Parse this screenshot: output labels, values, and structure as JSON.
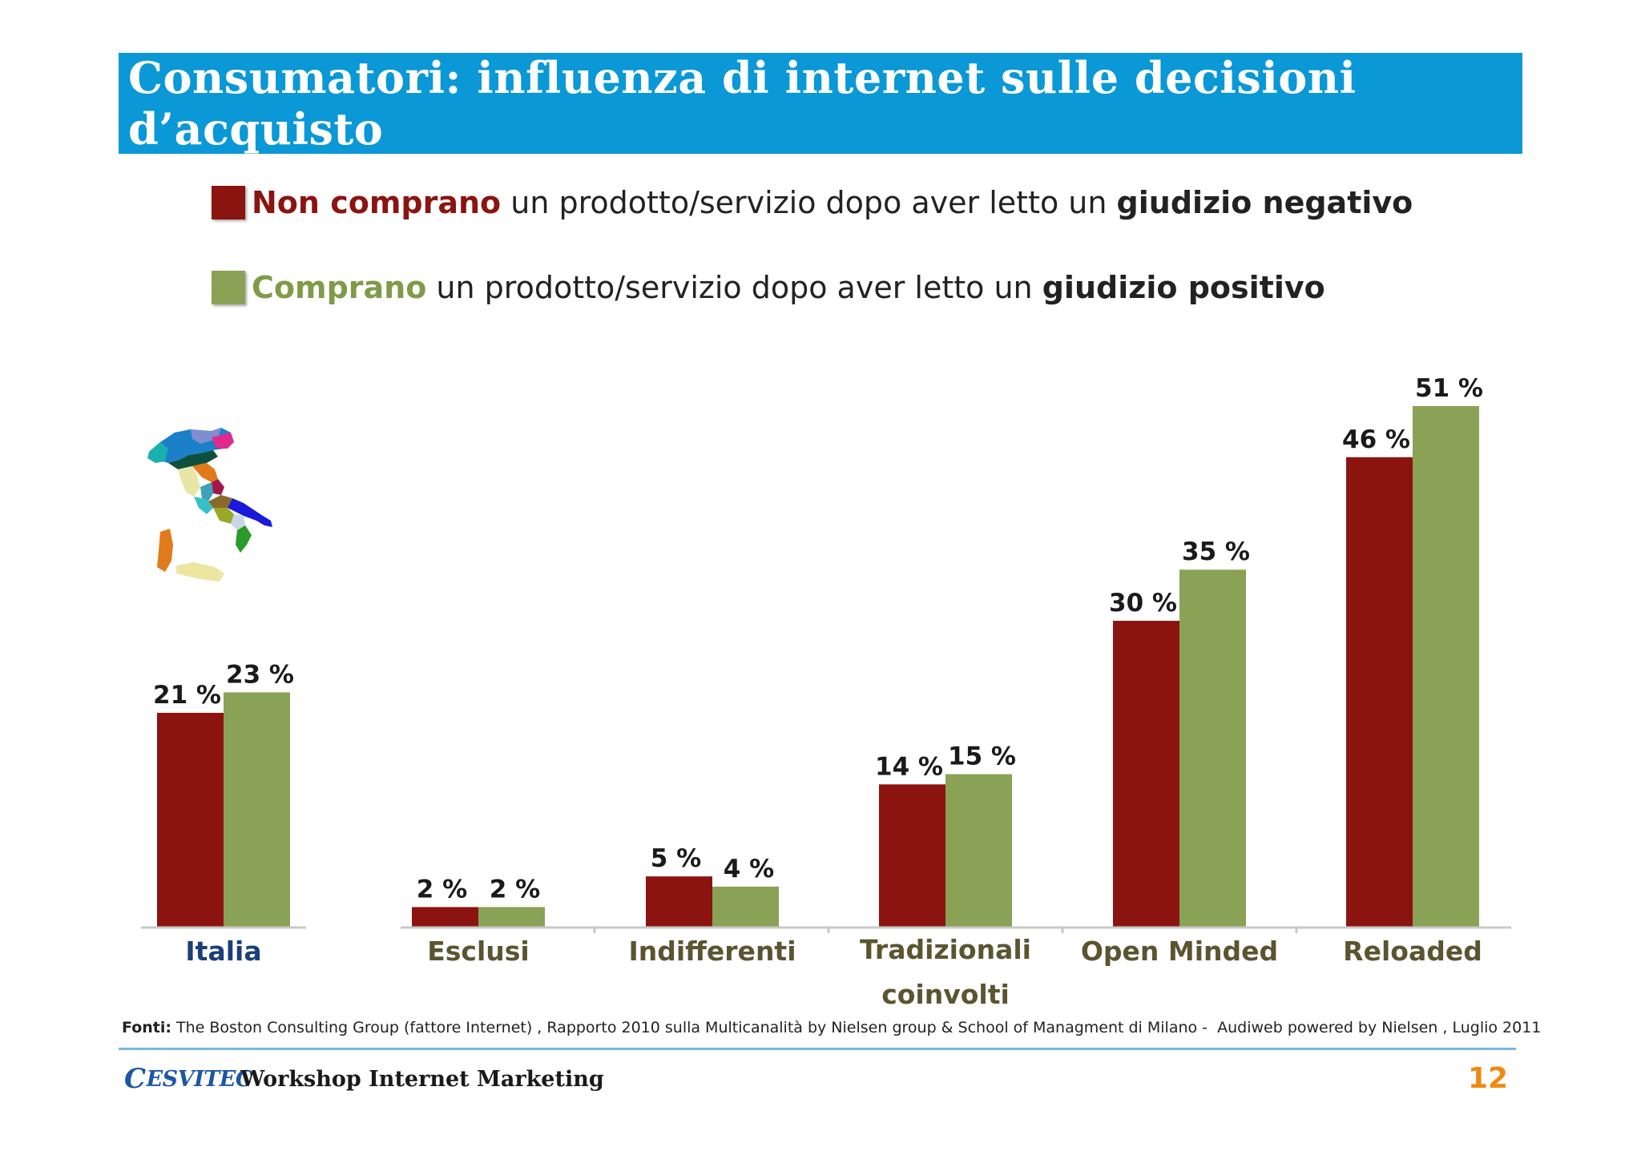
{
  "header": {
    "title": "Consumatori: influenza di internet sulle decisioni d’acquisto"
  },
  "legend": [
    {
      "strong": "Non comprano",
      "middle": " un prodotto/servizio dopo aver letto un ",
      "tail": "giudizio negativo",
      "color": "#8b1410"
    },
    {
      "strong": "Comprano",
      "middle": " un prodotto/servizio dopo aver letto un ",
      "tail": "giudizio positivo",
      "color": "#8aa255"
    }
  ],
  "chart_data": {
    "type": "bar",
    "categories": [
      "Italia",
      "Esclusi",
      "Indifferenti",
      "Tradizionali coinvolti",
      "Open Minded",
      "Reloaded"
    ],
    "series": [
      {
        "name": "Non comprano",
        "values": [
          21,
          2,
          5,
          14,
          30,
          46
        ],
        "labels": [
          "21 %",
          "2 %",
          "5 %",
          "14 %",
          "30 %",
          "46 %"
        ],
        "color": "#8b1410"
      },
      {
        "name": "Comprano",
        "values": [
          23,
          2,
          4,
          15,
          35,
          51
        ],
        "labels": [
          "23 %",
          "2 %",
          "4 %",
          "15 %",
          "35 %",
          "51 %"
        ],
        "color": "#8aa255"
      }
    ],
    "ylim": [
      0,
      51
    ],
    "grid": false,
    "legend_position": "top"
  },
  "footer": {
    "source_label": "Fonti:",
    "source_text": " The Boston Consulting Group (fattore Internet) , Rapporto 2010 sulla Multicanalità by Nielsen group & School of Managment di Milano -  Audiweb powered by Nielsen , Luglio 2011",
    "brand_initial": "C",
    "brand_rest": "ESVITEC",
    "workshop": "Workshop Internet Marketing",
    "page_number": "12"
  },
  "icons": {
    "map": "italy-regions-map-icon"
  }
}
